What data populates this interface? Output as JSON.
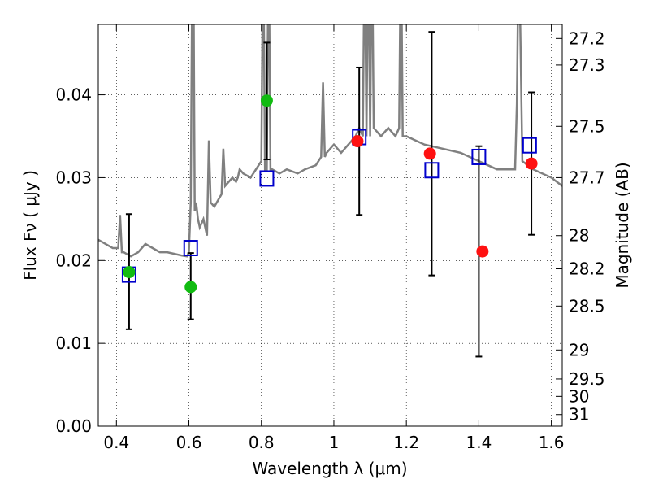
{
  "chart_data": {
    "type": "scatter",
    "xlabel": "Wavelength  λ (μm)",
    "ylabel": "Flux  Fν  ( μJy )",
    "y2label": "Magnitude (AB)",
    "xlim": [
      0.35,
      1.63
    ],
    "ylim": [
      0.0,
      0.0485
    ],
    "x_ticks": [
      0.4,
      0.6,
      0.8,
      1.0,
      1.2,
      1.4,
      1.6
    ],
    "x_tick_labels": [
      "0.4",
      "0.6",
      "0.8",
      "1",
      "1.2",
      "1.4",
      "1.6"
    ],
    "y_ticks": [
      0.0,
      0.01,
      0.02,
      0.03,
      0.04
    ],
    "y_tick_labels": [
      "0.00",
      "0.01",
      "0.02",
      "0.03",
      "0.04"
    ],
    "y2_ticks": [
      {
        "flux": 0.0468,
        "label": "27.2"
      },
      {
        "flux": 0.0436,
        "label": "27.3"
      },
      {
        "flux": 0.0362,
        "label": "27.5"
      },
      {
        "flux": 0.03,
        "label": "27.7"
      },
      {
        "flux": 0.023,
        "label": "28"
      },
      {
        "flux": 0.019,
        "label": "28.2"
      },
      {
        "flux": 0.0145,
        "label": "28.5"
      },
      {
        "flux": 0.0092,
        "label": "29"
      },
      {
        "flux": 0.0057,
        "label": "29.5"
      },
      {
        "flux": 0.0036,
        "label": "30"
      },
      {
        "flux": 0.0014,
        "label": "31"
      }
    ],
    "grid": true,
    "series": [
      {
        "name": "model spectrum",
        "kind": "line",
        "color": "#808080",
        "x": [
          0.35,
          0.37,
          0.39,
          0.405,
          0.41,
          0.415,
          0.42,
          0.44,
          0.46,
          0.48,
          0.5,
          0.52,
          0.54,
          0.56,
          0.58,
          0.595,
          0.6,
          0.605,
          0.61,
          0.612,
          0.616,
          0.62,
          0.625,
          0.63,
          0.64,
          0.65,
          0.655,
          0.66,
          0.67,
          0.69,
          0.695,
          0.7,
          0.72,
          0.73,
          0.735,
          0.74,
          0.75,
          0.77,
          0.8,
          0.805,
          0.81,
          0.815,
          0.82,
          0.825,
          0.83,
          0.85,
          0.87,
          0.9,
          0.92,
          0.95,
          0.965,
          0.97,
          0.975,
          0.98,
          1.0,
          1.02,
          1.04,
          1.06,
          1.07,
          1.08,
          1.085,
          1.09,
          1.095,
          1.1,
          1.105,
          1.11,
          1.13,
          1.15,
          1.17,
          1.18,
          1.185,
          1.19,
          1.2,
          1.25,
          1.3,
          1.35,
          1.4,
          1.45,
          1.5,
          1.505,
          1.51,
          1.52,
          1.55,
          1.6,
          1.63
        ],
        "y": [
          0.0225,
          0.022,
          0.0215,
          0.0215,
          0.0255,
          0.021,
          0.021,
          0.0205,
          0.021,
          0.022,
          0.0215,
          0.021,
          0.021,
          0.0208,
          0.0206,
          0.0205,
          0.021,
          0.027,
          0.06,
          0.06,
          0.026,
          0.027,
          0.025,
          0.024,
          0.025,
          0.023,
          0.0345,
          0.027,
          0.0265,
          0.028,
          0.0335,
          0.029,
          0.03,
          0.0295,
          0.03,
          0.031,
          0.0305,
          0.03,
          0.032,
          0.06,
          0.031,
          0.031,
          0.06,
          0.031,
          0.031,
          0.0305,
          0.031,
          0.0305,
          0.031,
          0.0315,
          0.0325,
          0.0415,
          0.0325,
          0.033,
          0.034,
          0.033,
          0.034,
          0.035,
          0.036,
          0.035,
          0.06,
          0.035,
          0.06,
          0.035,
          0.06,
          0.036,
          0.035,
          0.036,
          0.035,
          0.036,
          0.06,
          0.035,
          0.035,
          0.034,
          0.0335,
          0.033,
          0.032,
          0.031,
          0.031,
          0.039,
          0.06,
          0.032,
          0.031,
          0.03,
          0.029
        ]
      },
      {
        "name": "blue squares",
        "kind": "open-square",
        "color": "#0000cc",
        "x": [
          0.435,
          0.605,
          0.815,
          1.07,
          1.27,
          1.4,
          1.54
        ],
        "y": [
          0.0183,
          0.0215,
          0.0299,
          0.0349,
          0.0309,
          0.0325,
          0.0339
        ]
      },
      {
        "name": "green points",
        "kind": "filled-circle",
        "color": "#11bb11",
        "x": [
          0.435,
          0.605,
          0.815
        ],
        "y": [
          0.0186,
          0.0168,
          0.0393
        ]
      },
      {
        "name": "red points",
        "kind": "filled-circle",
        "color": "#ff1111",
        "x": [
          1.065,
          1.265,
          1.41,
          1.545
        ],
        "y": [
          0.0344,
          0.0329,
          0.0211,
          0.0317
        ]
      }
    ],
    "errorbars": [
      {
        "x": 0.435,
        "low": 0.0117,
        "high": 0.0256
      },
      {
        "x": 0.605,
        "low": 0.0129,
        "high": 0.0209
      },
      {
        "x": 0.815,
        "low": 0.0322,
        "high": 0.0463
      },
      {
        "x": 1.07,
        "low": 0.0255,
        "high": 0.0433
      },
      {
        "x": 1.27,
        "low": 0.0182,
        "high": 0.0476
      },
      {
        "x": 1.4,
        "low": 0.0084,
        "high": 0.0338
      },
      {
        "x": 1.545,
        "low": 0.0231,
        "high": 0.0403
      }
    ]
  }
}
